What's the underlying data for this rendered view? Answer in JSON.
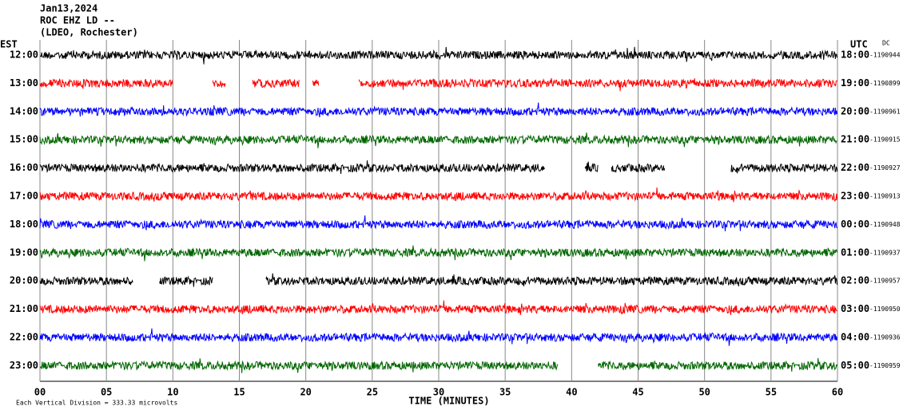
{
  "chart_data": {
    "type": "helicorder",
    "title_lines": [
      "Jan13,2024",
      "ROC EHZ LD --",
      "(LDEO, Rochester)"
    ],
    "left_axis_label": "EST",
    "right_axis_label": "UTC",
    "dc_label": "DC",
    "x_label": "TIME (MINUTES)",
    "footer": "Each Vertical Division =  333.33 microvolts",
    "xlim": [
      0,
      60
    ],
    "xticks": [
      {
        "value": 0,
        "label": "00"
      },
      {
        "value": 5,
        "label": "05"
      },
      10,
      15,
      20,
      25,
      30,
      35,
      40,
      45,
      50,
      55,
      60
    ],
    "rows": [
      {
        "est": "12:00",
        "utc": "18:00",
        "dc": "-1190944",
        "color": "#000000",
        "segments": [
          [
            0,
            60
          ]
        ]
      },
      {
        "est": "13:00",
        "utc": "19:00",
        "dc": "-1190899",
        "color": "#ff0000",
        "segments": [
          [
            0,
            10
          ],
          [
            13,
            14
          ],
          [
            16,
            19.5
          ],
          [
            20.5,
            21
          ],
          [
            24,
            60
          ]
        ]
      },
      {
        "est": "14:00",
        "utc": "20:00",
        "dc": "-1190961",
        "color": "#0000ff",
        "segments": [
          [
            0,
            60
          ]
        ]
      },
      {
        "est": "15:00",
        "utc": "21:00",
        "dc": "-1190915",
        "color": "#006600",
        "segments": [
          [
            0,
            60
          ]
        ]
      },
      {
        "est": "16:00",
        "utc": "22:00",
        "dc": "-1190927",
        "color": "#000000",
        "segments": [
          [
            0,
            38
          ],
          [
            41,
            42
          ],
          [
            43,
            47
          ],
          [
            52,
            60
          ]
        ]
      },
      {
        "est": "17:00",
        "utc": "23:00",
        "dc": "-1190913",
        "color": "#ff0000",
        "segments": [
          [
            0,
            60
          ]
        ]
      },
      {
        "est": "18:00",
        "utc": "00:00",
        "dc": "-1190948",
        "color": "#0000ff",
        "segments": [
          [
            0,
            60
          ]
        ]
      },
      {
        "est": "19:00",
        "utc": "01:00",
        "dc": "-1190937",
        "color": "#006600",
        "segments": [
          [
            0,
            60
          ]
        ]
      },
      {
        "est": "20:00",
        "utc": "02:00",
        "dc": "-1190957",
        "color": "#000000",
        "segments": [
          [
            0,
            7
          ],
          [
            9,
            13
          ],
          [
            17,
            60
          ]
        ]
      },
      {
        "est": "21:00",
        "utc": "03:00",
        "dc": "-1190950",
        "color": "#ff0000",
        "segments": [
          [
            0,
            60
          ]
        ]
      },
      {
        "est": "22:00",
        "utc": "04:00",
        "dc": "-1190936",
        "color": "#0000ff",
        "segments": [
          [
            0,
            60
          ]
        ]
      },
      {
        "est": "23:00",
        "utc": "05:00",
        "dc": "-1190959",
        "color": "#006600",
        "segments": [
          [
            0,
            39
          ],
          [
            42,
            60
          ]
        ]
      }
    ]
  }
}
